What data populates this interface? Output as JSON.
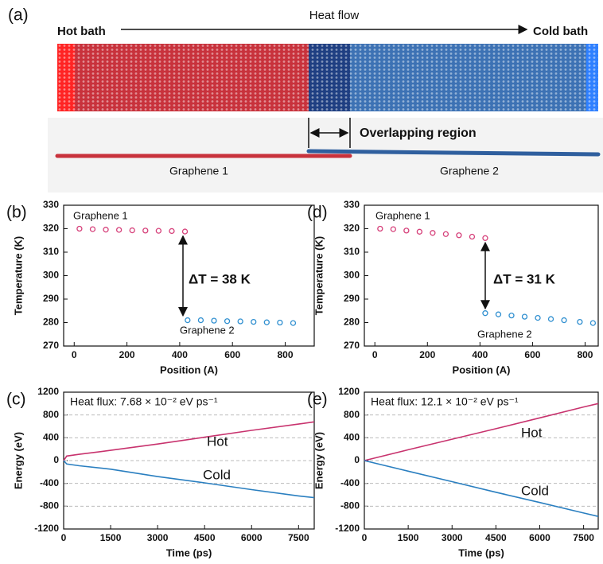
{
  "panel_a": {
    "label": "(a)",
    "hot_bath": "Hot bath",
    "heat_flow": "Heat flow",
    "cold_bath": "Cold bath",
    "overlap": "Overlapping region",
    "sheet_1": "Graphene 1",
    "sheet_2": "Graphene 2"
  },
  "chart_data": [
    {
      "type": "scatter",
      "label": "(b)",
      "xlabel": "Position (A)",
      "ylabel": "Temperature (K)",
      "xlim": [
        -40,
        910
      ],
      "xticks": [
        0,
        200,
        400,
        600,
        800
      ],
      "ylim": [
        270,
        330
      ],
      "yticks": [
        270,
        280,
        290,
        300,
        310,
        320,
        330
      ],
      "grid": false,
      "series": [
        {
          "name": "Graphene 1",
          "color": "#d6407a",
          "x": [
            20,
            70,
            120,
            170,
            220,
            270,
            320,
            370,
            420
          ],
          "values": [
            320,
            319.8,
            319.6,
            319.5,
            319.3,
            319.2,
            319.1,
            319,
            318.8
          ]
        },
        {
          "name": "Graphene 2",
          "color": "#2f8fd0",
          "x": [
            430,
            480,
            530,
            580,
            630,
            680,
            730,
            780,
            830
          ],
          "values": [
            281,
            281,
            280.8,
            280.6,
            280.5,
            280.3,
            280.1,
            280,
            279.8
          ]
        }
      ],
      "annotations": [
        "ΔT = 38 K"
      ]
    },
    {
      "type": "scatter",
      "label": "(d)",
      "xlabel": "Position (A)",
      "ylabel": "Temperature (K)",
      "xlim": [
        -40,
        850
      ],
      "xticks": [
        0,
        200,
        400,
        600,
        800
      ],
      "ylim": [
        270,
        330
      ],
      "yticks": [
        270,
        280,
        290,
        300,
        310,
        320,
        330
      ],
      "grid": false,
      "series": [
        {
          "name": "Graphene 1",
          "color": "#d6407a",
          "x": [
            20,
            70,
            120,
            170,
            220,
            270,
            320,
            370,
            420
          ],
          "values": [
            320,
            319.8,
            319.2,
            318.7,
            318.2,
            317.7,
            317.2,
            316.6,
            316
          ]
        },
        {
          "name": "Graphene 2",
          "color": "#2f8fd0",
          "x": [
            420,
            470,
            520,
            570,
            620,
            670,
            720,
            780,
            830
          ],
          "values": [
            284,
            283.5,
            283,
            282.5,
            282,
            281.5,
            281,
            280.3,
            279.8
          ]
        }
      ],
      "annotations": [
        "ΔT = 31 K"
      ]
    },
    {
      "type": "line",
      "label": "(c)",
      "xlabel": "Time (ps)",
      "ylabel": "Energy (eV)",
      "xlim": [
        0,
        8000
      ],
      "xticks": [
        0,
        1500,
        3000,
        4500,
        6000,
        7500
      ],
      "ylim": [
        -1200,
        1200
      ],
      "yticks": [
        -1200,
        -800,
        -400,
        0,
        400,
        800,
        1200
      ],
      "grid": true,
      "series": [
        {
          "name": "Hot",
          "color": "#c8336e",
          "x": [
            0,
            100,
            500,
            1500,
            3000,
            4500,
            6000,
            7500,
            8000
          ],
          "values": [
            0,
            80,
            110,
            180,
            290,
            410,
            530,
            640,
            680
          ]
        },
        {
          "name": "Cold",
          "color": "#2a7fc0",
          "x": [
            0,
            100,
            500,
            1500,
            3000,
            4500,
            6000,
            7500,
            8000
          ],
          "values": [
            0,
            -60,
            -90,
            -150,
            -280,
            -390,
            -510,
            -620,
            -650
          ]
        }
      ],
      "annotations": [
        "Heat flux: 7.68 × 10⁻² eV ps⁻¹"
      ]
    },
    {
      "type": "line",
      "label": "(e)",
      "xlabel": "Time (ps)",
      "ylabel": "Energy (eV)",
      "xlim": [
        0,
        8000
      ],
      "xticks": [
        0,
        1500,
        3000,
        4500,
        6000,
        7500
      ],
      "ylim": [
        -1200,
        1200
      ],
      "yticks": [
        -1200,
        -800,
        -400,
        0,
        400,
        800,
        1200
      ],
      "grid": true,
      "series": [
        {
          "name": "Hot",
          "color": "#c8336e",
          "x": [
            0,
            1500,
            3000,
            4500,
            6000,
            7500,
            8000
          ],
          "values": [
            0,
            190,
            375,
            560,
            750,
            940,
            1000
          ]
        },
        {
          "name": "Cold",
          "color": "#2a7fc0",
          "x": [
            0,
            1500,
            3000,
            4500,
            6000,
            7500,
            8000
          ],
          "values": [
            0,
            -185,
            -370,
            -555,
            -735,
            -920,
            -980
          ]
        }
      ],
      "annotations": [
        "Heat flux: 12.1 × 10⁻² eV ps⁻¹"
      ]
    }
  ]
}
